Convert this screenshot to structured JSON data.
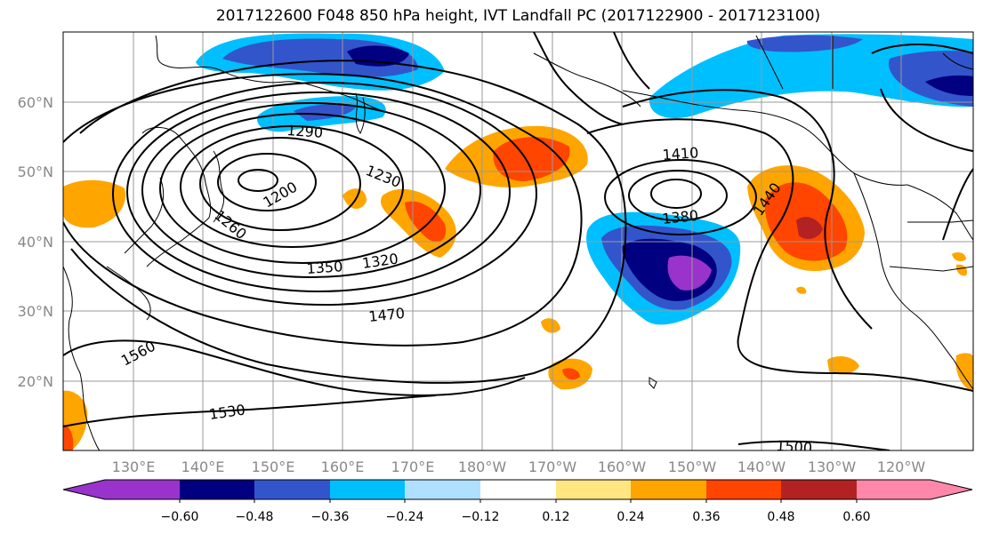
{
  "title": "2017122600 F048 850 hPa height, IVT Landfall PC (2017122900 - 2017123100)",
  "lat_labels": [
    "60°N",
    "50°N",
    "40°N",
    "30°N",
    "20°N"
  ],
  "lon_labels": [
    "130°E",
    "140°E",
    "150°E",
    "160°E",
    "170°E",
    "180°W",
    "170°W",
    "160°W",
    "150°W",
    "140°W",
    "130°W",
    "120°W"
  ],
  "contour_labels": [
    "1560",
    "1530",
    "1500",
    "1470",
    "1440",
    "1410",
    "1380",
    "1350",
    "1320",
    "1290",
    "1260",
    "1230",
    "1200"
  ],
  "colorbar": {
    "ticks": [
      "−0.60",
      "−0.48",
      "−0.36",
      "−0.24",
      "−0.12",
      "0.12",
      "0.24",
      "0.36",
      "0.48",
      "0.60"
    ],
    "colors": [
      "#9933cc",
      "#000080",
      "#3355cc",
      "#00bfff",
      "#b0e0ff",
      "#ffffff",
      "#ffe680",
      "#ffa500",
      "#ff4500",
      "#b22222",
      "#ff88aa"
    ]
  }
}
